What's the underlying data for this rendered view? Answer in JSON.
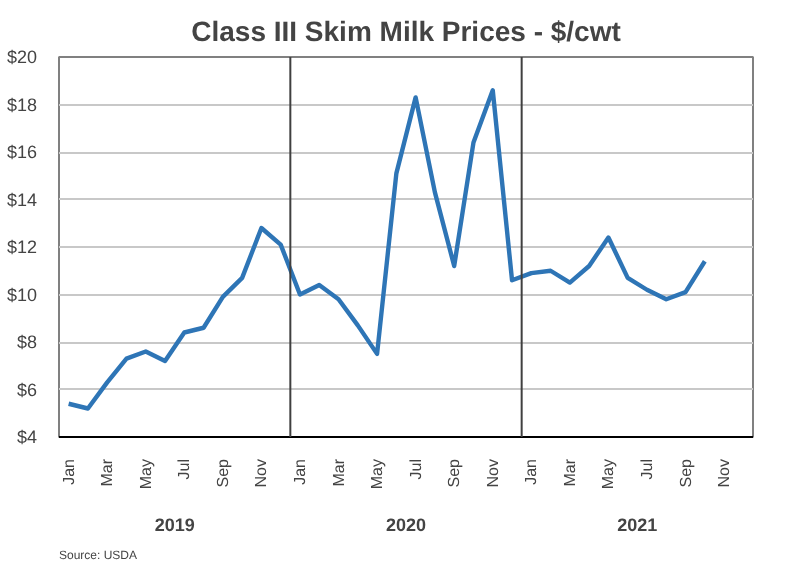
{
  "chart_data": {
    "type": "line",
    "title": "Class III Skim Milk Prices - $/cwt",
    "categories": [
      "Jan",
      null,
      "Mar",
      null,
      "May",
      null,
      "Jul",
      null,
      "Sep",
      null,
      "Nov",
      null,
      "Jan",
      null,
      "Mar",
      null,
      "May",
      null,
      "Jul",
      null,
      "Sep",
      null,
      "Nov",
      null,
      "Jan",
      null,
      "Mar",
      null,
      "May",
      null,
      "Jul",
      null,
      "Sep",
      null,
      "Nov",
      null
    ],
    "series": [
      {
        "color": "#2e75b6",
        "values": [
          5.4,
          5.2,
          6.3,
          7.3,
          7.6,
          7.2,
          8.4,
          8.6,
          9.9,
          10.7,
          12.8,
          12.1,
          10.0,
          10.4,
          9.8,
          8.7,
          7.5,
          15.1,
          18.3,
          14.3,
          11.2,
          16.4,
          18.6,
          10.6,
          10.9,
          11.0,
          10.5,
          11.2,
          12.4,
          10.7,
          10.2,
          9.8,
          10.1,
          11.4,
          null,
          null
        ]
      }
    ],
    "ylim": [
      4,
      20
    ],
    "yticks": [
      {
        "value": 4,
        "label": "$4"
      },
      {
        "value": 6,
        "label": "$6"
      },
      {
        "value": 8,
        "label": "$8"
      },
      {
        "value": 10,
        "label": "$10"
      },
      {
        "value": 12,
        "label": "$12"
      },
      {
        "value": 14,
        "label": "$14"
      },
      {
        "value": 16,
        "label": "$16"
      },
      {
        "value": 18,
        "label": "$18"
      },
      {
        "value": 20,
        "label": "$20"
      }
    ],
    "grid": "y",
    "marker": "none",
    "line_style": "solid",
    "annotations": [
      "2019",
      "2020",
      "2021",
      "Source: USDA"
    ]
  }
}
